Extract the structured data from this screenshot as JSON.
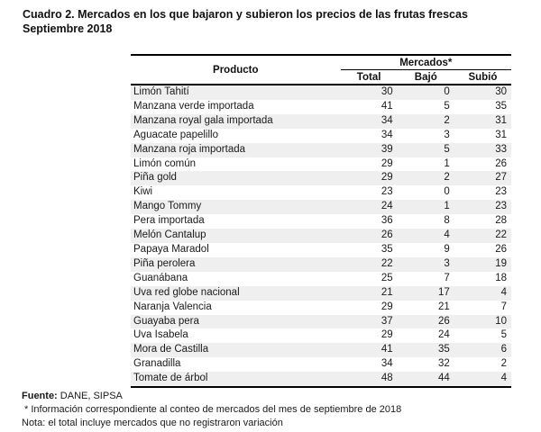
{
  "title": {
    "line1": "Cuadro 2. Mercados en los que bajaron y subieron los precios de las frutas frescas",
    "line2": "Septiembre 2018"
  },
  "table": {
    "product_header": "Producto",
    "group_header": "Mercados*",
    "sub_headers": [
      "Total",
      "Bajó",
      "Subió"
    ],
    "rows": [
      {
        "producto": "Limón Tahití",
        "total": 30,
        "bajo": 0,
        "subio": 30
      },
      {
        "producto": "Manzana verde importada",
        "total": 41,
        "bajo": 5,
        "subio": 35
      },
      {
        "producto": "Manzana royal gala importada",
        "total": 34,
        "bajo": 2,
        "subio": 31
      },
      {
        "producto": "Aguacate papelillo",
        "total": 34,
        "bajo": 3,
        "subio": 31
      },
      {
        "producto": "Manzana roja importada",
        "total": 39,
        "bajo": 5,
        "subio": 33
      },
      {
        "producto": "Limón común",
        "total": 29,
        "bajo": 1,
        "subio": 26
      },
      {
        "producto": "Piña gold",
        "total": 29,
        "bajo": 2,
        "subio": 27
      },
      {
        "producto": "Kiwi",
        "total": 23,
        "bajo": 0,
        "subio": 23
      },
      {
        "producto": "Mango Tommy",
        "total": 24,
        "bajo": 1,
        "subio": 23
      },
      {
        "producto": "Pera importada",
        "total": 36,
        "bajo": 8,
        "subio": 28
      },
      {
        "producto": "Melón Cantalup",
        "total": 26,
        "bajo": 4,
        "subio": 22
      },
      {
        "producto": "Papaya Maradol",
        "total": 35,
        "bajo": 9,
        "subio": 26
      },
      {
        "producto": "Piña perolera",
        "total": 22,
        "bajo": 3,
        "subio": 19
      },
      {
        "producto": "Guanábana",
        "total": 25,
        "bajo": 7,
        "subio": 18
      },
      {
        "producto": "Uva red globe nacional",
        "total": 21,
        "bajo": 17,
        "subio": 4
      },
      {
        "producto": "Naranja Valencia",
        "total": 29,
        "bajo": 21,
        "subio": 7
      },
      {
        "producto": "Guayaba pera",
        "total": 37,
        "bajo": 26,
        "subio": 10
      },
      {
        "producto": "Uva Isabela",
        "total": 29,
        "bajo": 24,
        "subio": 5
      },
      {
        "producto": "Mora de Castilla",
        "total": 41,
        "bajo": 35,
        "subio": 6
      },
      {
        "producto": "Granadilla",
        "total": 34,
        "bajo": 32,
        "subio": 2
      },
      {
        "producto": "Tomate de árbol",
        "total": 48,
        "bajo": 44,
        "subio": 4
      }
    ]
  },
  "footer": {
    "fuente_label": "Fuente:",
    "fuente_value": " DANE, SIPSA",
    "note1": "* Información correspondiente al conteo de mercados del mes de septiembre de 2018",
    "note2": "Nota: el total incluye mercados que no registraron variación"
  },
  "colors": {
    "row_alt": "#efefef",
    "text": "#1a1a1a",
    "border": "#000000"
  }
}
